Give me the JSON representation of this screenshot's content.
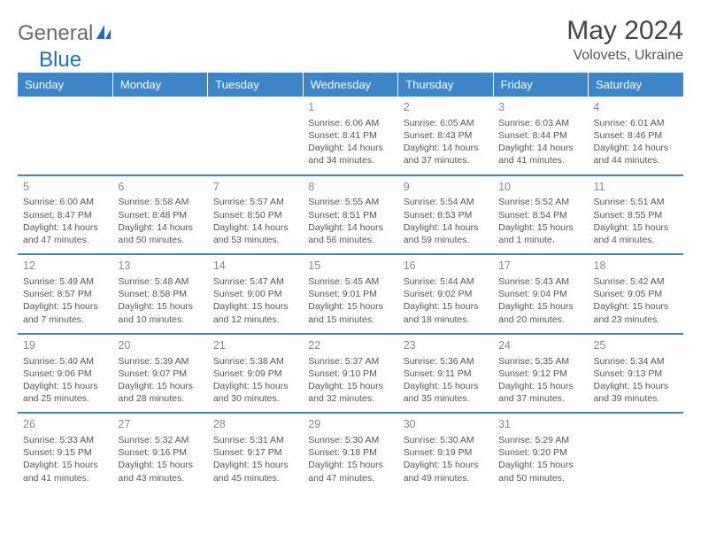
{
  "brand": {
    "part1": "General",
    "part2": "Blue"
  },
  "title": "May 2024",
  "location": "Volovets, Ukraine",
  "colors": {
    "header_bg": "#3d85c6",
    "header_text": "#ffffff",
    "border": "#3d85c6",
    "daynum": "#888888",
    "body_text": "#555555",
    "logo_gray": "#6b6b6b",
    "logo_blue": "#1f6fb2"
  },
  "weekdays": [
    "Sunday",
    "Monday",
    "Tuesday",
    "Wednesday",
    "Thursday",
    "Friday",
    "Saturday"
  ],
  "weeks": [
    [
      null,
      null,
      null,
      {
        "d": "1",
        "sr": "Sunrise: 6:06 AM",
        "ss": "Sunset: 8:41 PM",
        "dl1": "Daylight: 14 hours",
        "dl2": "and 34 minutes."
      },
      {
        "d": "2",
        "sr": "Sunrise: 6:05 AM",
        "ss": "Sunset: 8:43 PM",
        "dl1": "Daylight: 14 hours",
        "dl2": "and 37 minutes."
      },
      {
        "d": "3",
        "sr": "Sunrise: 6:03 AM",
        "ss": "Sunset: 8:44 PM",
        "dl1": "Daylight: 14 hours",
        "dl2": "and 41 minutes."
      },
      {
        "d": "4",
        "sr": "Sunrise: 6:01 AM",
        "ss": "Sunset: 8:46 PM",
        "dl1": "Daylight: 14 hours",
        "dl2": "and 44 minutes."
      }
    ],
    [
      {
        "d": "5",
        "sr": "Sunrise: 6:00 AM",
        "ss": "Sunset: 8:47 PM",
        "dl1": "Daylight: 14 hours",
        "dl2": "and 47 minutes."
      },
      {
        "d": "6",
        "sr": "Sunrise: 5:58 AM",
        "ss": "Sunset: 8:48 PM",
        "dl1": "Daylight: 14 hours",
        "dl2": "and 50 minutes."
      },
      {
        "d": "7",
        "sr": "Sunrise: 5:57 AM",
        "ss": "Sunset: 8:50 PM",
        "dl1": "Daylight: 14 hours",
        "dl2": "and 53 minutes."
      },
      {
        "d": "8",
        "sr": "Sunrise: 5:55 AM",
        "ss": "Sunset: 8:51 PM",
        "dl1": "Daylight: 14 hours",
        "dl2": "and 56 minutes."
      },
      {
        "d": "9",
        "sr": "Sunrise: 5:54 AM",
        "ss": "Sunset: 8:53 PM",
        "dl1": "Daylight: 14 hours",
        "dl2": "and 59 minutes."
      },
      {
        "d": "10",
        "sr": "Sunrise: 5:52 AM",
        "ss": "Sunset: 8:54 PM",
        "dl1": "Daylight: 15 hours",
        "dl2": "and 1 minute."
      },
      {
        "d": "11",
        "sr": "Sunrise: 5:51 AM",
        "ss": "Sunset: 8:55 PM",
        "dl1": "Daylight: 15 hours",
        "dl2": "and 4 minutes."
      }
    ],
    [
      {
        "d": "12",
        "sr": "Sunrise: 5:49 AM",
        "ss": "Sunset: 8:57 PM",
        "dl1": "Daylight: 15 hours",
        "dl2": "and 7 minutes."
      },
      {
        "d": "13",
        "sr": "Sunrise: 5:48 AM",
        "ss": "Sunset: 8:58 PM",
        "dl1": "Daylight: 15 hours",
        "dl2": "and 10 minutes."
      },
      {
        "d": "14",
        "sr": "Sunrise: 5:47 AM",
        "ss": "Sunset: 9:00 PM",
        "dl1": "Daylight: 15 hours",
        "dl2": "and 12 minutes."
      },
      {
        "d": "15",
        "sr": "Sunrise: 5:45 AM",
        "ss": "Sunset: 9:01 PM",
        "dl1": "Daylight: 15 hours",
        "dl2": "and 15 minutes."
      },
      {
        "d": "16",
        "sr": "Sunrise: 5:44 AM",
        "ss": "Sunset: 9:02 PM",
        "dl1": "Daylight: 15 hours",
        "dl2": "and 18 minutes."
      },
      {
        "d": "17",
        "sr": "Sunrise: 5:43 AM",
        "ss": "Sunset: 9:04 PM",
        "dl1": "Daylight: 15 hours",
        "dl2": "and 20 minutes."
      },
      {
        "d": "18",
        "sr": "Sunrise: 5:42 AM",
        "ss": "Sunset: 9:05 PM",
        "dl1": "Daylight: 15 hours",
        "dl2": "and 23 minutes."
      }
    ],
    [
      {
        "d": "19",
        "sr": "Sunrise: 5:40 AM",
        "ss": "Sunset: 9:06 PM",
        "dl1": "Daylight: 15 hours",
        "dl2": "and 25 minutes."
      },
      {
        "d": "20",
        "sr": "Sunrise: 5:39 AM",
        "ss": "Sunset: 9:07 PM",
        "dl1": "Daylight: 15 hours",
        "dl2": "and 28 minutes."
      },
      {
        "d": "21",
        "sr": "Sunrise: 5:38 AM",
        "ss": "Sunset: 9:09 PM",
        "dl1": "Daylight: 15 hours",
        "dl2": "and 30 minutes."
      },
      {
        "d": "22",
        "sr": "Sunrise: 5:37 AM",
        "ss": "Sunset: 9:10 PM",
        "dl1": "Daylight: 15 hours",
        "dl2": "and 32 minutes."
      },
      {
        "d": "23",
        "sr": "Sunrise: 5:36 AM",
        "ss": "Sunset: 9:11 PM",
        "dl1": "Daylight: 15 hours",
        "dl2": "and 35 minutes."
      },
      {
        "d": "24",
        "sr": "Sunrise: 5:35 AM",
        "ss": "Sunset: 9:12 PM",
        "dl1": "Daylight: 15 hours",
        "dl2": "and 37 minutes."
      },
      {
        "d": "25",
        "sr": "Sunrise: 5:34 AM",
        "ss": "Sunset: 9:13 PM",
        "dl1": "Daylight: 15 hours",
        "dl2": "and 39 minutes."
      }
    ],
    [
      {
        "d": "26",
        "sr": "Sunrise: 5:33 AM",
        "ss": "Sunset: 9:15 PM",
        "dl1": "Daylight: 15 hours",
        "dl2": "and 41 minutes."
      },
      {
        "d": "27",
        "sr": "Sunrise: 5:32 AM",
        "ss": "Sunset: 9:16 PM",
        "dl1": "Daylight: 15 hours",
        "dl2": "and 43 minutes."
      },
      {
        "d": "28",
        "sr": "Sunrise: 5:31 AM",
        "ss": "Sunset: 9:17 PM",
        "dl1": "Daylight: 15 hours",
        "dl2": "and 45 minutes."
      },
      {
        "d": "29",
        "sr": "Sunrise: 5:30 AM",
        "ss": "Sunset: 9:18 PM",
        "dl1": "Daylight: 15 hours",
        "dl2": "and 47 minutes."
      },
      {
        "d": "30",
        "sr": "Sunrise: 5:30 AM",
        "ss": "Sunset: 9:19 PM",
        "dl1": "Daylight: 15 hours",
        "dl2": "and 49 minutes."
      },
      {
        "d": "31",
        "sr": "Sunrise: 5:29 AM",
        "ss": "Sunset: 9:20 PM",
        "dl1": "Daylight: 15 hours",
        "dl2": "and 50 minutes."
      },
      null
    ]
  ]
}
